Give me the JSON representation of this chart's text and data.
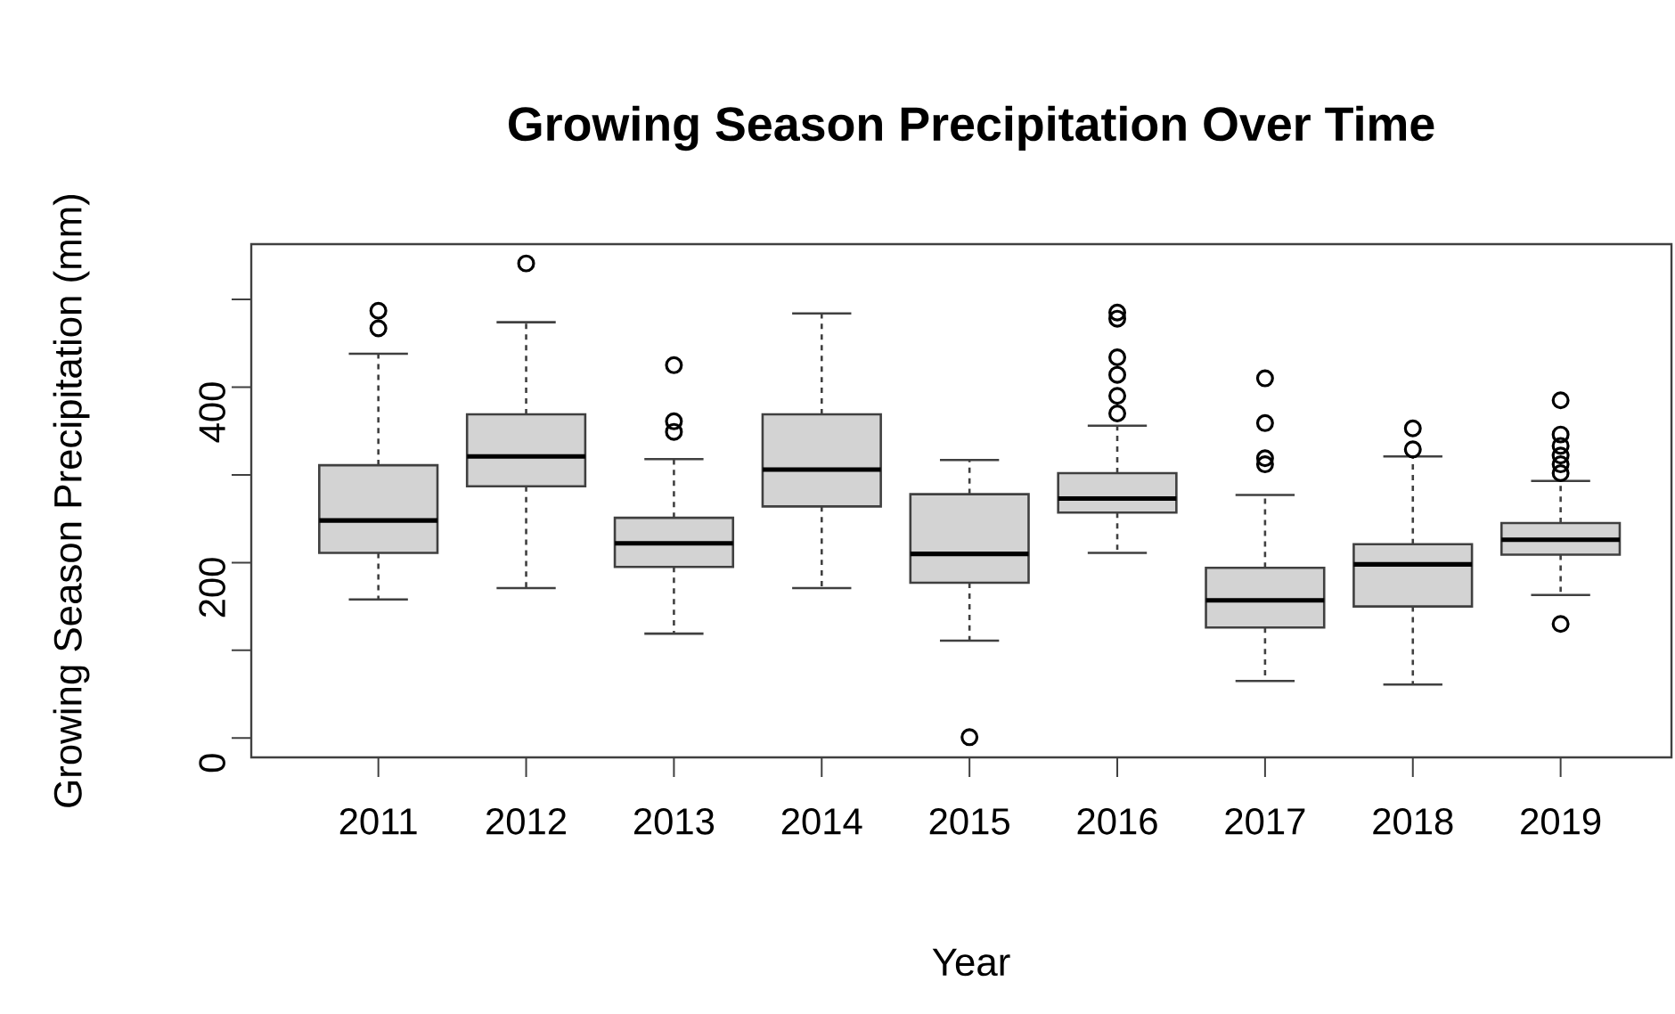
{
  "chart_data": {
    "type": "box",
    "title": "Growing Season Precipitation Over Time",
    "xlabel": "Year",
    "ylabel": "Growing Season Precipitation (mm)",
    "categories": [
      "2011",
      "2012",
      "2013",
      "2014",
      "2015",
      "2016",
      "2017",
      "2018",
      "2019"
    ],
    "color": "#d3d3d3",
    "marker": "circle",
    "ylim": [
      -22,
      563
    ],
    "yticks": [
      0,
      {
        "value": 100,
        "label": null
      },
      200,
      {
        "value": 300,
        "label": null
      },
      400,
      {
        "value": 500,
        "label": null
      }
    ],
    "boxes": [
      {
        "low": 158,
        "q1": 211,
        "median": 248,
        "q3": 311,
        "high": 438,
        "outliers": [
          487,
          467
        ]
      },
      {
        "low": 171,
        "q1": 287,
        "median": 321,
        "q3": 369,
        "high": 474,
        "outliers": [
          541
        ]
      },
      {
        "low": 119,
        "q1": 195,
        "median": 222,
        "q3": 251,
        "high": 318,
        "outliers": [
          425,
          361,
          349
        ]
      },
      {
        "low": 171,
        "q1": 264,
        "median": 306,
        "q3": 369,
        "high": 484
      },
      {
        "low": 111,
        "q1": 177,
        "median": 210,
        "q3": 278,
        "high": 317,
        "outliers": [
          1
        ]
      },
      {
        "low": 211,
        "q1": 257,
        "median": 273,
        "q3": 302,
        "high": 356,
        "outliers": [
          485,
          478,
          434,
          414,
          390,
          370
        ]
      },
      {
        "low": 65,
        "q1": 126,
        "median": 157,
        "q3": 194,
        "high": 277,
        "outliers": [
          410,
          359,
          319,
          312
        ]
      },
      {
        "low": 61,
        "q1": 150,
        "median": 198,
        "q3": 221,
        "high": 321,
        "outliers": [
          353,
          329
        ]
      },
      {
        "low": 163,
        "q1": 209,
        "median": 226,
        "q3": 245,
        "high": 293,
        "outliers": [
          385,
          346,
          333,
          322,
          312,
          302,
          130
        ]
      }
    ]
  }
}
